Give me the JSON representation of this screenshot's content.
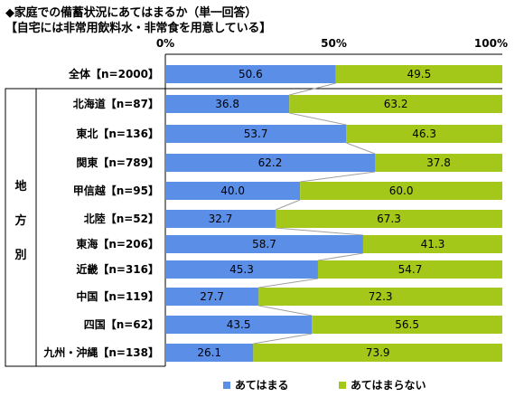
{
  "header": {
    "title": "◆家庭での備蓄状況にあてはまるか（単一回答）",
    "subtitle": "【自宅には非常用飲料水・非常食を用意している】"
  },
  "group_label": [
    "地",
    "方",
    "別"
  ],
  "colors": {
    "series1": "#5b8ee6",
    "series2": "#a4c81a",
    "connector": "#a0a0a0"
  },
  "chart_data": {
    "type": "bar",
    "stacked": true,
    "orientation": "horizontal",
    "xlim": [
      0,
      100
    ],
    "x_ticks": [
      "0%",
      "50%",
      "100%"
    ],
    "categories": [
      "全体【n=2000】",
      "北海道【n=87】",
      "東北【n=136】",
      "関東【n=789】",
      "甲信越【n=95】",
      "北陸【n=52】",
      "東海【n=206】",
      "近畿【n=316】",
      "中国【n=119】",
      "四国【n=62】",
      "九州・沖縄【n=138】"
    ],
    "series": [
      {
        "name": "あてはまる",
        "values": [
          50.6,
          36.8,
          53.7,
          62.2,
          40.0,
          32.7,
          58.7,
          45.3,
          27.7,
          43.5,
          26.1
        ]
      },
      {
        "name": "あてはまらない",
        "values": [
          49.5,
          63.2,
          46.3,
          37.8,
          60.0,
          67.3,
          41.3,
          54.7,
          72.3,
          56.5,
          73.9
        ]
      }
    ],
    "legend": "bottom"
  }
}
